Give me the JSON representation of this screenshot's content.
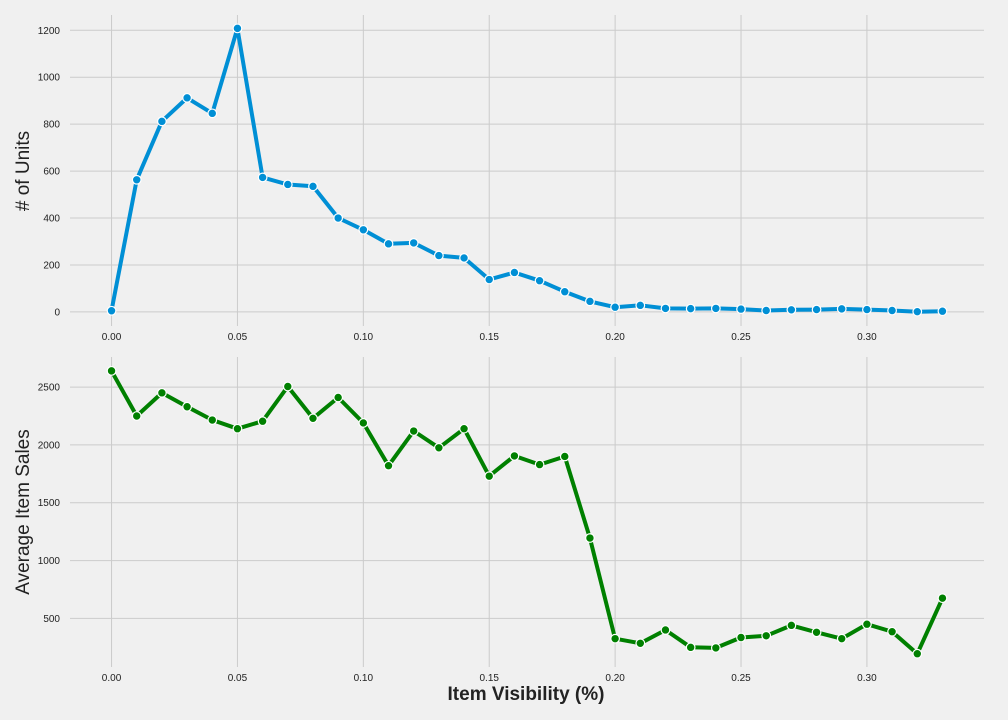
{
  "chart_data": [
    {
      "type": "line",
      "ylabel": "# of Units",
      "xlabel": "",
      "color": "#008fd5",
      "grid": true,
      "xlim": [
        -0.0165,
        0.3465
      ],
      "ylim": [
        -60,
        1265
      ],
      "xticks": [
        0.0,
        0.05,
        0.1,
        0.15,
        0.2,
        0.25,
        0.3
      ],
      "xtick_labels": [
        "0.00",
        "0.05",
        "0.10",
        "0.15",
        "0.20",
        "0.25",
        "0.30"
      ],
      "yticks": [
        0,
        200,
        400,
        600,
        800,
        1000,
        1200
      ],
      "ytick_labels": [
        "0",
        "200",
        "400",
        "600",
        "800",
        "1000",
        "1200"
      ],
      "x": [
        0.0,
        0.01,
        0.02,
        0.03,
        0.04,
        0.05,
        0.06,
        0.07,
        0.08,
        0.09,
        0.1,
        0.11,
        0.12,
        0.13,
        0.14,
        0.15,
        0.16,
        0.17,
        0.18,
        0.19,
        0.2,
        0.21,
        0.22,
        0.23,
        0.24,
        0.25,
        0.26,
        0.27,
        0.28,
        0.29,
        0.3,
        0.31,
        0.32,
        0.33
      ],
      "values": [
        5,
        563,
        812,
        912,
        846,
        1208,
        573,
        543,
        535,
        400,
        350,
        290,
        294,
        240,
        230,
        138,
        168,
        133,
        86,
        45,
        20,
        28,
        15,
        14,
        15,
        12,
        6,
        9,
        10,
        13,
        10,
        6,
        1,
        3
      ]
    },
    {
      "type": "line",
      "ylabel": "Average Item Sales",
      "xlabel": "Item Visibility (%)",
      "color": "#008000",
      "grid": true,
      "xlim": [
        -0.0165,
        0.3465
      ],
      "ylim": [
        80,
        2760
      ],
      "xticks": [
        0.0,
        0.05,
        0.1,
        0.15,
        0.2,
        0.25,
        0.3
      ],
      "xtick_labels": [
        "0.00",
        "0.05",
        "0.10",
        "0.15",
        "0.20",
        "0.25",
        "0.30"
      ],
      "yticks": [
        500,
        1000,
        1500,
        2000,
        2500
      ],
      "ytick_labels": [
        "500",
        "1000",
        "1500",
        "2000",
        "2500"
      ],
      "x": [
        0.0,
        0.01,
        0.02,
        0.03,
        0.04,
        0.05,
        0.06,
        0.07,
        0.08,
        0.09,
        0.1,
        0.11,
        0.12,
        0.13,
        0.14,
        0.15,
        0.16,
        0.17,
        0.18,
        0.19,
        0.2,
        0.21,
        0.22,
        0.23,
        0.24,
        0.25,
        0.26,
        0.27,
        0.28,
        0.29,
        0.3,
        0.31,
        0.32,
        0.33
      ],
      "values": [
        2640,
        2250,
        2450,
        2330,
        2215,
        2140,
        2205,
        2505,
        2230,
        2410,
        2190,
        1820,
        2120,
        1975,
        2140,
        1730,
        1905,
        1830,
        1900,
        1195,
        325,
        285,
        400,
        250,
        245,
        335,
        350,
        440,
        380,
        325,
        450,
        385,
        195,
        675
      ]
    }
  ]
}
